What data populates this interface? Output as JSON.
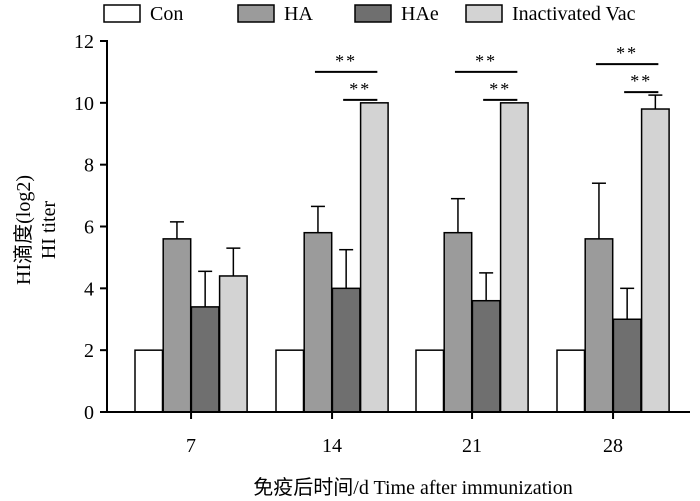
{
  "chart_data": {
    "type": "bar",
    "categories": [
      "7",
      "14",
      "21",
      "28"
    ],
    "series": [
      {
        "name": "Con",
        "values": [
          2,
          2,
          2,
          2
        ],
        "errors": [
          0,
          0,
          0,
          0
        ],
        "color": "#ffffff"
      },
      {
        "name": "HA",
        "values": [
          5.6,
          5.8,
          5.8,
          5.6
        ],
        "errors": [
          0.55,
          0.85,
          1.1,
          1.8
        ],
        "color": "#9b9b9b"
      },
      {
        "name": "HAe",
        "values": [
          3.4,
          4.0,
          3.6,
          3.0
        ],
        "errors": [
          1.15,
          1.25,
          0.9,
          1.0
        ],
        "color": "#6f6f6f"
      },
      {
        "name": "Inactivated Vac",
        "values": [
          4.4,
          10.0,
          10.0,
          9.8
        ],
        "errors": [
          0.9,
          0,
          0,
          0.45
        ],
        "color": "#d3d3d3"
      }
    ],
    "ylim": [
      0,
      12
    ],
    "yticks": [
      "0",
      "2",
      "4",
      "6",
      "8",
      "10",
      "12"
    ],
    "ylabel_line1": "HI滴度(log2)",
    "ylabel_line2": "HI titer",
    "xlabel": "免疫后时间/d Time after immunization",
    "legend_position": "top",
    "significance": [
      {
        "group": 1,
        "from": 1,
        "to": 3,
        "label": "**"
      },
      {
        "group": 1,
        "from": 2,
        "to": 3,
        "label": "**"
      },
      {
        "group": 2,
        "from": 1,
        "to": 3,
        "label": "**"
      },
      {
        "group": 2,
        "from": 2,
        "to": 3,
        "label": "**"
      },
      {
        "group": 3,
        "from": 1,
        "to": 3,
        "label": "**"
      },
      {
        "group": 3,
        "from": 2,
        "to": 3,
        "label": "**"
      }
    ]
  }
}
